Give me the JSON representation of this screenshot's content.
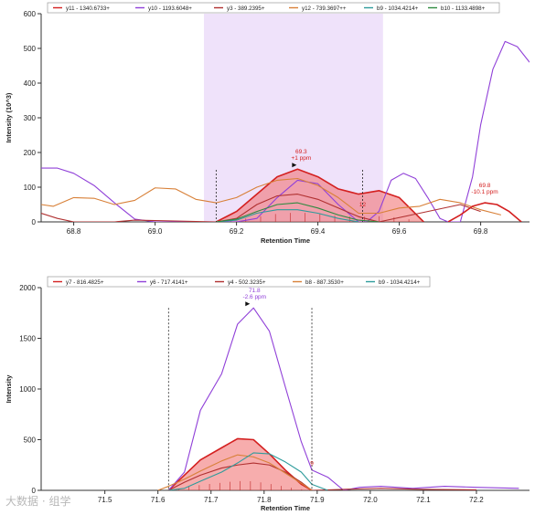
{
  "chart_data": [
    {
      "type": "line",
      "title": "",
      "xlabel": "Retention Time",
      "ylabel": "Intensity (10^3)",
      "xlim": [
        68.72,
        69.92
      ],
      "ylim": [
        0,
        600
      ],
      "xticks": [
        68.8,
        69.0,
        69.2,
        69.4,
        69.6,
        69.8
      ],
      "xtick_labels": [
        "68.8",
        "69.0",
        "69.2",
        "69.4",
        "69.6",
        "69.8"
      ],
      "yticks": [
        0,
        100,
        200,
        300,
        400,
        500,
        600
      ],
      "ytick_labels": [
        "0",
        "100",
        "200",
        "300",
        "400",
        "500",
        "600"
      ],
      "highlight_band": {
        "x0": 69.12,
        "x1": 69.56,
        "color": "#efe2fa"
      },
      "boundary_lines": [
        69.15,
        69.51
      ],
      "grid": false,
      "legend_position": "top",
      "series": [
        {
          "name": "y11 - 1340.6733+",
          "color": "#d42020",
          "primary": true,
          "x": [
            69.15,
            69.2,
            69.25,
            69.3,
            69.35,
            69.4,
            69.45,
            69.5,
            69.55,
            69.6,
            69.63,
            69.66
          ],
          "y": [
            0,
            30,
            80,
            130,
            152,
            130,
            95,
            80,
            90,
            70,
            35,
            0
          ]
        },
        {
          "name": "y10 - 1193.6048+",
          "color": "#9040d8",
          "x": [
            68.72,
            68.76,
            68.8,
            68.85,
            68.9,
            68.95,
            69.0,
            69.05,
            69.1,
            69.15,
            69.2,
            69.25,
            69.3,
            69.35,
            69.4,
            69.45,
            69.5,
            69.52,
            69.55,
            69.58,
            69.61,
            69.64,
            69.67,
            69.7,
            69.72,
            69.75,
            69.78,
            69.8,
            69.83,
            69.86,
            69.89,
            69.92
          ],
          "y": [
            155,
            155,
            140,
            105,
            55,
            8,
            0,
            0,
            0,
            0,
            0,
            10,
            70,
            120,
            110,
            50,
            0,
            0,
            30,
            120,
            140,
            125,
            70,
            10,
            0,
            0,
            130,
            280,
            440,
            520,
            505,
            460
          ]
        },
        {
          "name": "y3 - 389.2395+",
          "color": "#b03030",
          "x": [
            68.72,
            68.76,
            68.8,
            68.85,
            68.9,
            68.95,
            69.15,
            69.2,
            69.25,
            69.3,
            69.35,
            69.4,
            69.45,
            69.5,
            69.55,
            69.65,
            69.75,
            69.8
          ],
          "y": [
            25,
            10,
            0,
            0,
            0,
            5,
            0,
            10,
            50,
            75,
            80,
            65,
            40,
            15,
            0,
            25,
            50,
            30
          ]
        },
        {
          "name": "y12 - 739.3697++",
          "color": "#d88038",
          "x": [
            68.72,
            68.75,
            68.8,
            68.85,
            68.9,
            68.95,
            69.0,
            69.05,
            69.1,
            69.15,
            69.2,
            69.25,
            69.3,
            69.35,
            69.4,
            69.45,
            69.5,
            69.55,
            69.6,
            69.65,
            69.7,
            69.75,
            69.8,
            69.85
          ],
          "y": [
            50,
            45,
            70,
            68,
            50,
            62,
            98,
            95,
            65,
            55,
            70,
            100,
            120,
            125,
            105,
            70,
            25,
            25,
            40,
            45,
            65,
            55,
            35,
            20
          ]
        },
        {
          "name": "b9 - 1034.4214+",
          "color": "#2e9b9b",
          "x": [
            69.15,
            69.2,
            69.25,
            69.3,
            69.35,
            69.4,
            69.45,
            69.5
          ],
          "y": [
            0,
            5,
            25,
            35,
            35,
            25,
            10,
            0
          ]
        },
        {
          "name": "b10 - 1133.4898+",
          "color": "#2e8a40",
          "x": [
            69.15,
            69.2,
            69.25,
            69.3,
            69.35,
            69.4,
            69.45,
            69.5,
            69.55
          ],
          "y": [
            0,
            8,
            30,
            50,
            55,
            40,
            20,
            5,
            0
          ]
        },
        {
          "name": "",
          "color": "#d42020",
          "primary": true,
          "x": [
            69.72,
            69.75,
            69.78,
            69.81,
            69.84,
            69.87,
            69.9
          ],
          "y": [
            0,
            20,
            45,
            55,
            50,
            30,
            0
          ]
        }
      ],
      "annotations": [
        {
          "x": 69.35,
          "y": 152,
          "text": [
            "69.3",
            "+1 ppm"
          ],
          "color": "#d42020",
          "marker": true
        },
        {
          "x": 69.81,
          "y": 55,
          "text": [
            "69.8",
            "-10.1 ppm"
          ],
          "color": "#d42020",
          "marker": false
        },
        {
          "x": 69.51,
          "y": 40,
          "text": [
            "12"
          ],
          "color": "#d42020",
          "marker": false
        }
      ]
    },
    {
      "type": "line",
      "title": "",
      "xlabel": "Retention Time",
      "ylabel": "Intensity",
      "xlim": [
        71.38,
        72.3
      ],
      "ylim": [
        0,
        2000
      ],
      "xticks": [
        71.5,
        71.6,
        71.7,
        71.8,
        71.9,
        72.0,
        72.1,
        72.2
      ],
      "xtick_labels": [
        "71.5",
        "71.6",
        "71.7",
        "71.8",
        "71.9",
        "72.0",
        "72.1",
        "72.2"
      ],
      "yticks": [
        0,
        500,
        1000,
        1500,
        2000
      ],
      "ytick_labels": [
        "0",
        "500",
        "1000",
        "1500",
        "2000"
      ],
      "boundary_lines": [
        71.62,
        71.89
      ],
      "grid": false,
      "legend_position": "top",
      "series": [
        {
          "name": "y7 - 816.4825+",
          "color": "#d42020",
          "primary": true,
          "x": [
            71.62,
            71.65,
            71.68,
            71.72,
            71.75,
            71.78,
            71.81,
            71.84,
            71.87,
            71.89
          ],
          "y": [
            0,
            150,
            300,
            420,
            510,
            500,
            360,
            200,
            60,
            0
          ]
        },
        {
          "name": "y6 - 717.4141+",
          "color": "#9040d8",
          "x": [
            71.62,
            71.65,
            71.68,
            71.72,
            71.75,
            71.78,
            71.81,
            71.84,
            71.87,
            71.89,
            71.92,
            71.95,
            71.98,
            72.02,
            72.08,
            72.14,
            72.2,
            72.28
          ],
          "y": [
            0,
            180,
            790,
            1150,
            1640,
            1800,
            1570,
            1020,
            480,
            200,
            130,
            0,
            30,
            40,
            20,
            40,
            30,
            20
          ]
        },
        {
          "name": "y4 - 502.3235+",
          "color": "#b03030",
          "x": [
            71.62,
            71.65,
            71.68,
            71.72,
            71.75,
            71.78,
            71.81,
            71.84,
            71.87,
            71.89,
            71.95,
            72.02,
            72.1,
            72.2
          ],
          "y": [
            0,
            80,
            150,
            220,
            250,
            270,
            250,
            180,
            80,
            0,
            10,
            20,
            10,
            5
          ]
        },
        {
          "name": "b8 - 887.3530+",
          "color": "#d88038",
          "x": [
            71.6,
            71.62,
            71.65,
            71.68,
            71.72,
            71.75,
            71.78,
            71.81,
            71.84,
            71.87,
            71.89
          ],
          "y": [
            0,
            40,
            110,
            190,
            290,
            350,
            330,
            270,
            170,
            70,
            0
          ]
        },
        {
          "name": "b9 - 1034.4214+",
          "color": "#2e9b9b",
          "x": [
            71.62,
            71.65,
            71.68,
            71.72,
            71.75,
            71.78,
            71.81,
            71.84,
            71.87,
            71.89,
            71.92
          ],
          "y": [
            0,
            20,
            90,
            180,
            270,
            370,
            360,
            280,
            180,
            60,
            0
          ]
        }
      ],
      "annotations": [
        {
          "x": 71.775,
          "y": 1800,
          "text": [
            "71.8",
            "-2.6 ppm"
          ],
          "color": "#9040d8",
          "marker": true
        },
        {
          "x": 71.89,
          "y": 230,
          "text": [
            "9"
          ],
          "color": "#d42020",
          "marker": false
        }
      ]
    }
  ],
  "watermark": "大数据 · 组学"
}
